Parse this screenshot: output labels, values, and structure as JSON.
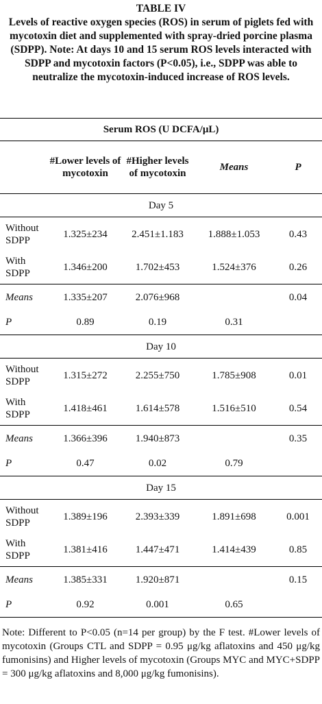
{
  "title": "TABLE IV",
  "caption": "Levels of reactive oxygen species (ROS) in serum of piglets fed with mycotoxin diet and supplemented with spray-dried porcine plasma (SDPP). Note: At days 10 and 15 serum ROS levels interacted with SDPP and mycotoxin factors (P<0.05), i.e., SDPP was able to neutralize the mycotoxin-induced increase of ROS levels.",
  "table": {
    "group_header": "Serum ROS (U DCFA/μL)",
    "columns": [
      "#Lower levels of mycotoxin",
      "#Higher levels of mycotoxin",
      "Means",
      "P"
    ],
    "sections": [
      {
        "label": "Day 5",
        "rows": [
          {
            "label": "Without SDPP",
            "cells": [
              "1.325±234",
              "2.451±1.183",
              "1.888±1.053",
              "0.43"
            ]
          },
          {
            "label": "With SDPP",
            "cells": [
              "1.346±200",
              "1.702±453",
              "1.524±376",
              "0.26"
            ]
          },
          {
            "label": "Means",
            "cells": [
              "1.335±207",
              "2.076±968",
              null,
              "0.04"
            ]
          },
          {
            "label": "P",
            "cells": [
              "0.89",
              "0.19",
              "0.31",
              null
            ]
          }
        ]
      },
      {
        "label": "Day 10",
        "rows": [
          {
            "label": "Without SDPP",
            "cells": [
              "1.315±272",
              "2.255±750",
              "1.785±908",
              "0.01"
            ]
          },
          {
            "label": "With SDPP",
            "cells": [
              "1.418±461",
              "1.614±578",
              "1.516±510",
              "0.54"
            ]
          },
          {
            "label": "Means",
            "cells": [
              "1.366±396",
              "1.940±873",
              null,
              "0.35"
            ]
          },
          {
            "label": "P",
            "cells": [
              "0.47",
              "0.02",
              "0.79",
              null
            ]
          }
        ]
      },
      {
        "label": "Day 15",
        "rows": [
          {
            "label": "Without SDPP",
            "cells": [
              "1.389±196",
              "2.393±339",
              "1.891±698",
              "0.001"
            ]
          },
          {
            "label": "With SDPP",
            "cells": [
              "1.381±416",
              "1.447±471",
              "1.414±439",
              "0.85"
            ]
          },
          {
            "label": "Means",
            "cells": [
              "1.385±331",
              "1.920±871",
              null,
              "0.15"
            ]
          },
          {
            "label": "P",
            "cells": [
              "0.92",
              "0.001",
              "0.65",
              null
            ]
          }
        ]
      }
    ]
  },
  "note": "Note: Different to P<0.05 (n=14 per group) by the F test. #Lower levels of mycotoxin (Groups CTL and SDPP = 0.95 μg/kg aflatoxins and 450 μg/kg fumonisins) and Higher levels of mycotoxin (Groups MYC and MYC+SDPP = 300 μg/kg aflatoxins and 8,000 μg/kg fumonisins)."
}
